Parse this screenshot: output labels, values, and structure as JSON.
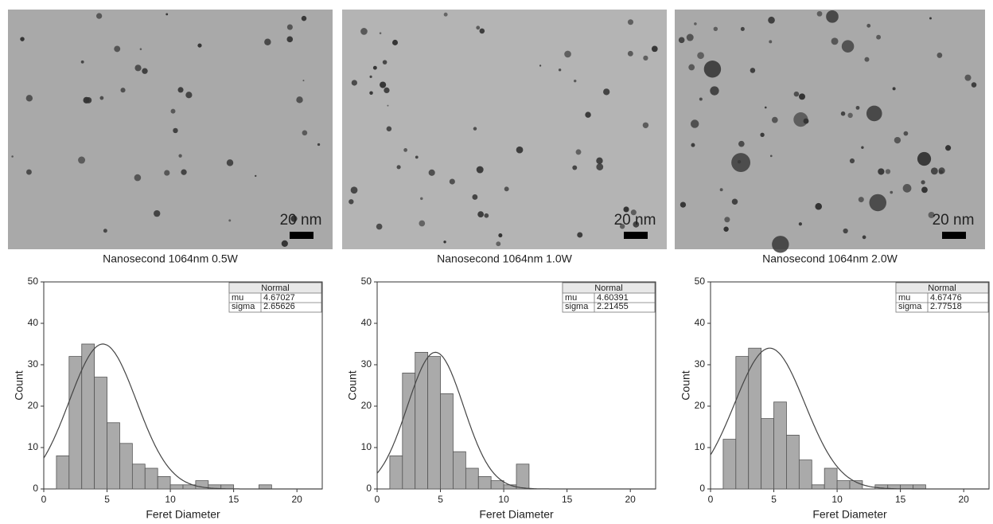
{
  "chart_data": [
    {
      "type": "histogram",
      "title": "Nanosecond 1064nm 0.5W",
      "image_scale_label": "20 nm",
      "x_label": "Feret Diameter",
      "y_label": "Count",
      "bins": [
        1,
        2,
        3,
        4,
        5,
        6,
        7,
        8,
        9,
        10,
        11,
        12,
        13,
        14,
        15,
        16,
        17,
        18
      ],
      "values": [
        8,
        32,
        35,
        27,
        16,
        11,
        6,
        5,
        3,
        1,
        1,
        2,
        1,
        1,
        0,
        0,
        1
      ],
      "color": "#aaaaaa",
      "xlim": [
        0,
        22
      ],
      "ylim": [
        0,
        50
      ],
      "xticks": [
        0,
        5,
        10,
        15,
        20
      ],
      "yticks": [
        0,
        10,
        20,
        30,
        40,
        50
      ],
      "fit": {
        "title": "Normal",
        "mu_label": "mu",
        "mu": 4.67027,
        "sigma_label": "sigma",
        "sigma": 2.65626
      }
    },
    {
      "type": "histogram",
      "title": "Nanosecond 1064nm 1.0W",
      "image_scale_label": "20 nm",
      "x_label": "Feret Diameter",
      "y_label": "Count",
      "bins": [
        1,
        2,
        3,
        4,
        5,
        6,
        7,
        8,
        9,
        10,
        11,
        12
      ],
      "values": [
        8,
        28,
        33,
        32,
        23,
        9,
        5,
        3,
        2,
        1,
        6
      ],
      "color": "#aaaaaa",
      "xlim": [
        0,
        22
      ],
      "ylim": [
        0,
        50
      ],
      "xticks": [
        0,
        5,
        10,
        15,
        20
      ],
      "yticks": [
        0,
        10,
        20,
        30,
        40,
        50
      ],
      "fit": {
        "title": "Normal",
        "mu_label": "mu",
        "mu": 4.60391,
        "sigma_label": "sigma",
        "sigma": 2.21455
      }
    },
    {
      "type": "histogram",
      "title": "Nanosecond 1064nm 2.0W",
      "image_scale_label": "20 nm",
      "x_label": "Feret Diameter",
      "y_label": "Count",
      "bins": [
        1,
        2,
        3,
        4,
        5,
        6,
        7,
        8,
        9,
        10,
        11,
        12,
        13,
        14,
        15,
        16,
        17
      ],
      "values": [
        12,
        32,
        34,
        17,
        21,
        13,
        7,
        1,
        5,
        2,
        2,
        0,
        1,
        1,
        1,
        1
      ],
      "color": "#aaaaaa",
      "xlim": [
        0,
        22
      ],
      "ylim": [
        0,
        50
      ],
      "xticks": [
        0,
        5,
        10,
        15,
        20
      ],
      "yticks": [
        0,
        10,
        20,
        30,
        40,
        50
      ],
      "fit": {
        "title": "Normal",
        "mu_label": "mu",
        "mu": 4.67476,
        "sigma_label": "sigma",
        "sigma": 2.77518
      }
    }
  ]
}
